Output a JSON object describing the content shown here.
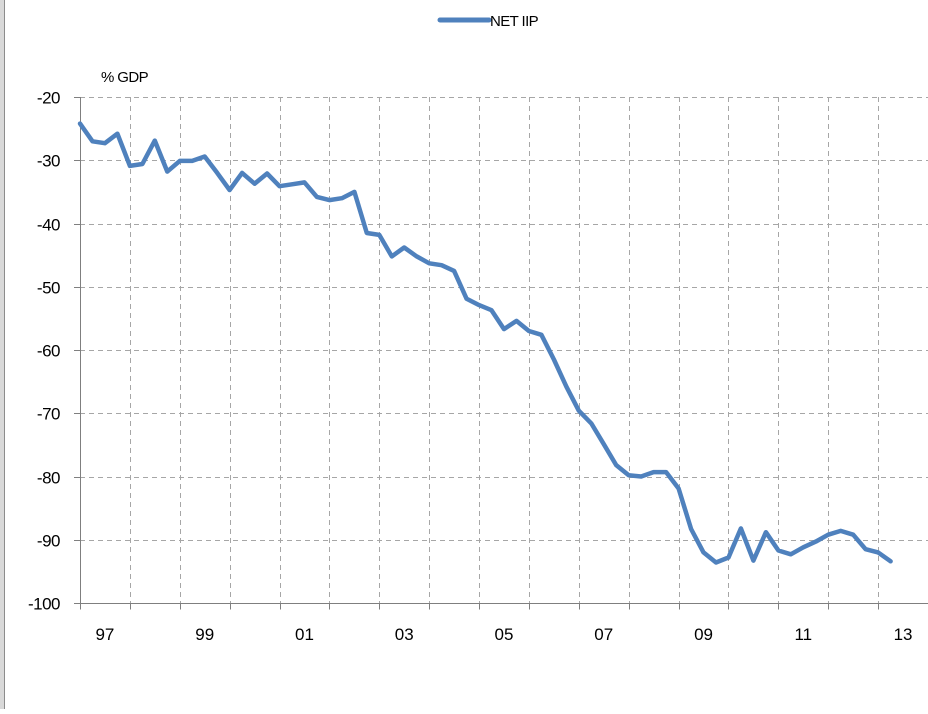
{
  "chart_data": {
    "type": "line",
    "title": "",
    "xlabel": "",
    "ylabel": "% GDP",
    "ylim": [
      -100,
      -20
    ],
    "yticks": [
      -20,
      -30,
      -40,
      -50,
      -60,
      -70,
      -80,
      -90,
      -100
    ],
    "ytick_labels": [
      "-20",
      "-30",
      "-40",
      "-50",
      "-60",
      "-70",
      "-80",
      "-90",
      "-100"
    ],
    "xlim": [
      1996.5,
      2013.5
    ],
    "xtick_labels": [
      "97",
      "99",
      "01",
      "03",
      "05",
      "07",
      "09",
      "11",
      "13"
    ],
    "xtick_values": [
      1997,
      1999,
      2001,
      2003,
      2005,
      2007,
      2009,
      2011,
      2013
    ],
    "grid": true,
    "legend_position": "top-center",
    "series": [
      {
        "name": "NET IIP",
        "color": "#4F81BD",
        "x": [
          1996.5,
          1996.75,
          1997.0,
          1997.25,
          1997.5,
          1997.75,
          1998.0,
          1998.25,
          1998.5,
          1998.75,
          1999.0,
          1999.25,
          1999.5,
          1999.75,
          2000.0,
          2000.25,
          2000.5,
          2000.75,
          2001.0,
          2001.25,
          2001.5,
          2001.75,
          2002.0,
          2002.25,
          2002.5,
          2002.75,
          2003.0,
          2003.25,
          2003.5,
          2003.75,
          2004.0,
          2004.25,
          2004.5,
          2004.75,
          2005.0,
          2005.25,
          2005.5,
          2005.75,
          2006.0,
          2006.25,
          2006.5,
          2006.75,
          2007.0,
          2007.25,
          2007.5,
          2007.75,
          2008.0,
          2008.25,
          2008.5,
          2008.75,
          2009.0,
          2009.25,
          2009.5,
          2009.75,
          2010.0,
          2010.25,
          2010.5,
          2010.75,
          2011.0,
          2011.25,
          2011.5,
          2011.75,
          2012.0,
          2012.25,
          2012.5,
          2012.75
        ],
        "values": [
          -24.2,
          -27.0,
          -27.3,
          -25.8,
          -30.9,
          -30.6,
          -26.9,
          -31.8,
          -30.1,
          -30.1,
          -29.4,
          -32.0,
          -34.7,
          -32.0,
          -33.7,
          -32.1,
          -34.1,
          -33.8,
          -33.5,
          -35.8,
          -36.3,
          -36.0,
          -35.0,
          -41.5,
          -41.8,
          -45.2,
          -43.8,
          -45.2,
          -46.3,
          -46.6,
          -47.5,
          -51.9,
          -52.9,
          -53.7,
          -56.7,
          -55.4,
          -57.0,
          -57.6,
          -61.5,
          -65.8,
          -69.6,
          -71.6,
          -74.9,
          -78.2,
          -79.8,
          -80.0,
          -79.3,
          -79.3,
          -81.9,
          -88.3,
          -92.0,
          -93.6,
          -92.8,
          -88.2,
          -93.3,
          -88.8,
          -91.7,
          -92.3,
          -91.2,
          -90.3,
          -89.2,
          -88.6,
          -89.2,
          -91.5,
          -92.0,
          -93.4
        ]
      }
    ]
  }
}
